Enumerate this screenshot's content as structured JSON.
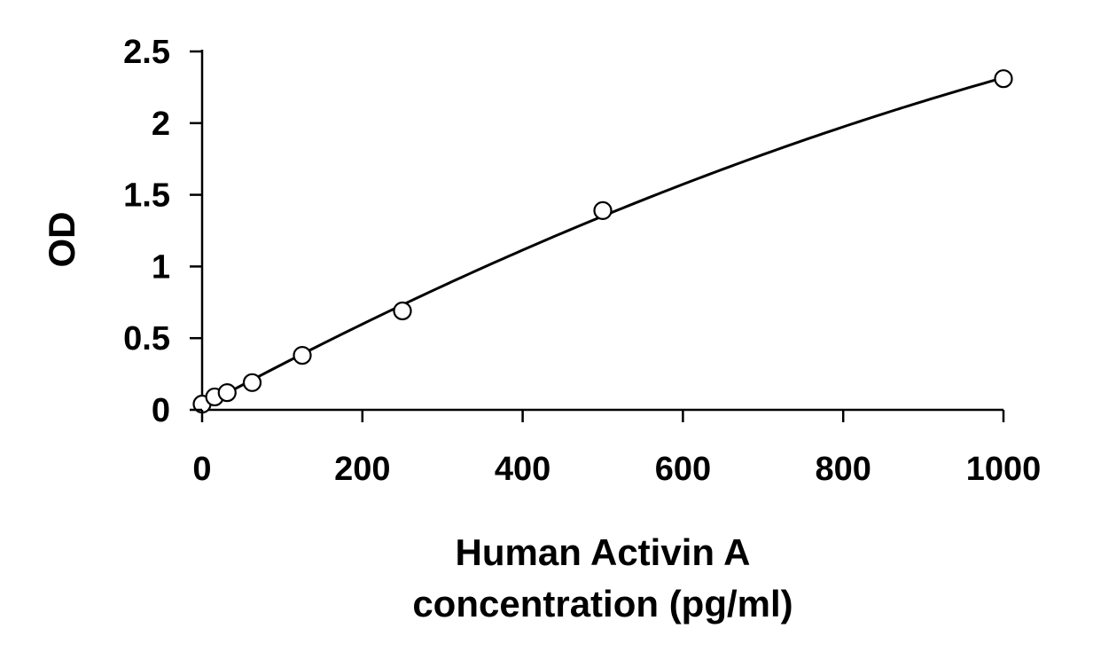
{
  "chart_data": {
    "type": "scatter",
    "xlabel_lines": [
      "Human Activin A",
      "concentration (pg/ml)"
    ],
    "ylabel": "OD",
    "xlim": [
      0,
      1000
    ],
    "ylim": [
      0,
      2.5
    ],
    "x_ticks": [
      0,
      200,
      400,
      600,
      800,
      1000
    ],
    "x_tick_labels": [
      "0",
      "200",
      "400",
      "600",
      "800",
      "1000"
    ],
    "y_ticks": [
      0,
      0.5,
      1,
      1.5,
      2,
      2.5
    ],
    "y_tick_labels": [
      "0",
      "0.5",
      "1",
      "1.5",
      "2",
      "2.5"
    ],
    "grid": false,
    "legend": "none",
    "series": [
      {
        "x": [
          0,
          15.6,
          31.25,
          62.5,
          125,
          250,
          500,
          1000
        ],
        "y": [
          0.04,
          0.09,
          0.12,
          0.19,
          0.38,
          0.69,
          1.39,
          2.31
        ],
        "marker": "open-circle",
        "fit": "smooth-curve"
      }
    ],
    "colors": {
      "line": "#000000",
      "marker_fill": "#ffffff",
      "marker_stroke": "#000000"
    }
  }
}
